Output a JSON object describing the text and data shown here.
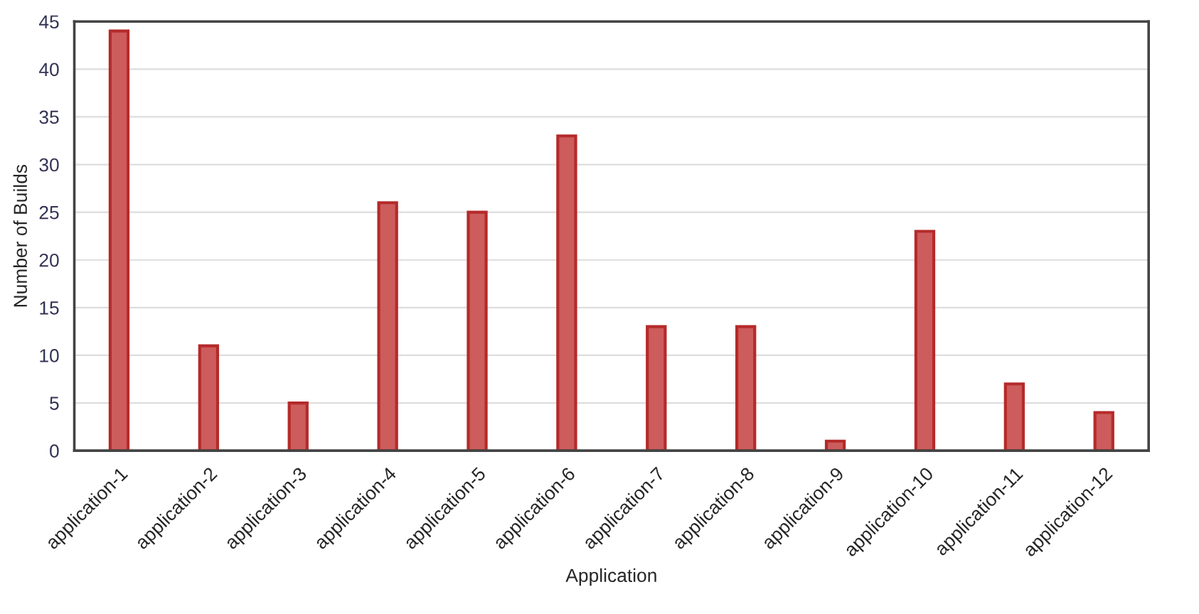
{
  "chart_data": {
    "type": "bar",
    "xlabel": "Application",
    "ylabel": "Number of Builds",
    "categories": [
      "application-1",
      "application-2",
      "application-3",
      "application-4",
      "application-5",
      "application-6",
      "application-7",
      "application-8",
      "application-9",
      "application-10",
      "application-11",
      "application-12"
    ],
    "values": [
      44,
      11,
      5,
      26,
      25,
      33,
      13,
      13,
      1,
      23,
      7,
      4
    ],
    "color": "#cd5c5c",
    "ylim": [
      0,
      45
    ],
    "yticks": [
      0,
      5,
      10,
      15,
      20,
      25,
      30,
      35,
      40,
      45
    ],
    "grid": "y"
  }
}
